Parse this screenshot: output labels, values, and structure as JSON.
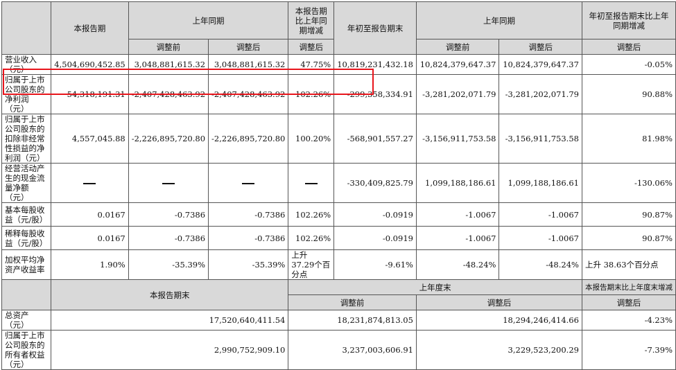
{
  "top_table": {
    "headers": {
      "current": "本报告期",
      "prior_same": "上年同期",
      "yoy_change": "本报告期比上年同期增减",
      "ytd": "年初至报告期末",
      "prior_same2": "上年同期",
      "ytd_change": "年初至报告期末比上年同期增减",
      "before_adj": "调整前",
      "after_adj": "调整后",
      "after_adj_change": "调整后",
      "before_adj2": "调整前",
      "after_adj2": "调整后",
      "after_adj_change2": "调整后"
    },
    "rows": [
      {
        "label": "营业收入（元）",
        "cur": "4,504,690,452.85",
        "pb": "3,048,881,615.32",
        "pa": "3,048,881,615.32",
        "chg": "47.75%",
        "ytd": "10,819,231,432.18",
        "yb": "10,824,379,647.37",
        "ya": "10,824,379,647.37",
        "ychg": "-0.05%"
      },
      {
        "label": "归属于上市公司股东的净利润（元）",
        "cur": "54,318,191.31",
        "pb": "-2,407,428,463.92",
        "pa": "-2,407,428,463.92",
        "chg": "102.26%",
        "ytd": "-299,358,334.91",
        "yb": "-3,281,202,071.79",
        "ya": "-3,281,202,071.79",
        "ychg": "90.88%"
      },
      {
        "label": "归属于上市公司股东的扣除非经常性损益的净利润（元）",
        "cur": "4,557,045.88",
        "pb": "-2,226,895,720.80",
        "pa": "-2,226,895,720.80",
        "chg": "100.20%",
        "ytd": "-568,901,557.27",
        "yb": "-3,156,911,753.58",
        "ya": "-3,156,911,753.58",
        "ychg": "81.98%"
      },
      {
        "label": "经营活动产生的现金流量净额（元）",
        "cur": "—",
        "pb": "—",
        "pa": "—",
        "chg": "—",
        "ytd": "-330,409,825.79",
        "yb": "1,099,188,186.61",
        "ya": "1,099,188,186.61",
        "ychg": "-130.06%"
      },
      {
        "label": "基本每股收益（元/股）",
        "cur": "0.0167",
        "pb": "-0.7386",
        "pa": "-0.7386",
        "chg": "102.26%",
        "ytd": "-0.0919",
        "yb": "-1.0067",
        "ya": "-1.0067",
        "ychg": "90.87%"
      },
      {
        "label": "稀释每股收益（元/股）",
        "cur": "0.0167",
        "pb": "-0.7386",
        "pa": "-0.7386",
        "chg": "102.26%",
        "ytd": "-0.0919",
        "yb": "-1.0067",
        "ya": "-1.0067",
        "ychg": "90.87%"
      },
      {
        "label": "加权平均净资产收益率",
        "cur": "1.90%",
        "pb": "-35.39%",
        "pa": "-35.39%",
        "chg": "上升 37.29个百分点",
        "ytd": "-9.61%",
        "yb": "-48.24%",
        "ya": "-48.24%",
        "ychg": "上升 38.63个百分点"
      }
    ]
  },
  "bottom_table": {
    "headers": {
      "current_end": "本报告期末",
      "last_year_end": "上年度末",
      "change": "本报告期末比上年度末增减",
      "before_adj": "调整前",
      "after_adj": "调整后",
      "after_adj_change": "调整后"
    },
    "rows": [
      {
        "label": "总资产（元）",
        "cur": "17,520,640,411.54",
        "pb": "18,231,874,813.05",
        "pa": "18,294,246,414.66",
        "chg": "-4.23%"
      },
      {
        "label": "归属于上市公司股东的所有者权益（元）",
        "cur": "2,990,752,909.10",
        "pb": "3,237,003,606.91",
        "pa": "3,229,523,200.29",
        "chg": "-7.39%"
      }
    ]
  },
  "highlight_color": "#e8141b"
}
